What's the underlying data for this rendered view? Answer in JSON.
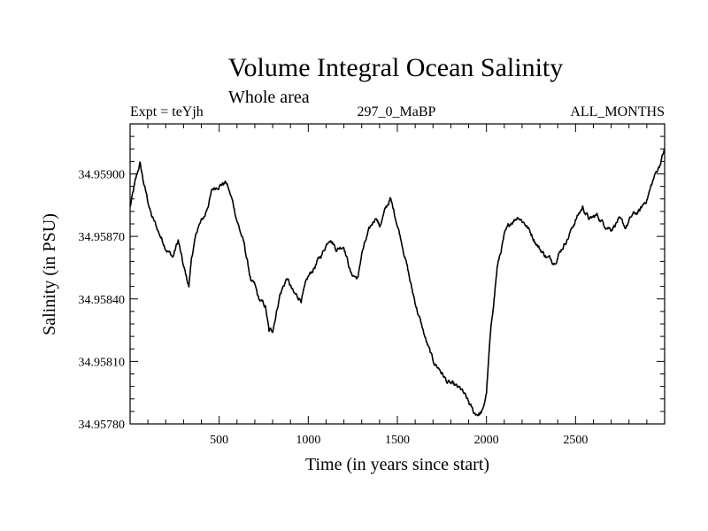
{
  "chart_data": {
    "type": "line",
    "title": "Volume Integral Ocean Salinity",
    "subtitle": "Whole area",
    "left_label": "Expt = teYjh",
    "center_label": "297_0_MaBP",
    "right_label": "ALL_MONTHS",
    "xlabel": "Time (in years since start)",
    "ylabel": "Salinity (in PSU)",
    "xlim": [
      0,
      3000
    ],
    "ylim": [
      34.9578,
      34.95924
    ],
    "x_ticks": [
      500,
      1000,
      1500,
      2000,
      2500
    ],
    "y_ticks": [
      34.9578,
      34.9581,
      34.9584,
      34.9587,
      34.959
    ],
    "y_tick_labels": [
      "34.95780",
      "34.95810",
      "34.95840",
      "34.95870",
      "34.95900"
    ],
    "grid": false,
    "color": "#000000",
    "series": [
      {
        "name": "salinity",
        "x": [
          0,
          30,
          55,
          80,
          120,
          160,
          200,
          240,
          270,
          300,
          330,
          345,
          380,
          420,
          460,
          500,
          540,
          570,
          600,
          640,
          680,
          700,
          720,
          760,
          780,
          800,
          840,
          880,
          920,
          960,
          1000,
          1040,
          1080,
          1120,
          1160,
          1200,
          1240,
          1280,
          1300,
          1340,
          1380,
          1400,
          1430,
          1460,
          1500,
          1540,
          1580,
          1620,
          1660,
          1700,
          1740,
          1780,
          1820,
          1860,
          1900,
          1930,
          1960,
          1980,
          2000,
          2020,
          2040,
          2060,
          2100,
          2140,
          2180,
          2220,
          2260,
          2300,
          2340,
          2380,
          2420,
          2460,
          2500,
          2540,
          2580,
          2620,
          2660,
          2700,
          2740,
          2780,
          2820,
          2860,
          2900,
          2940,
          2970,
          3000
        ],
        "values": [
          34.95884,
          34.95896,
          34.95905,
          34.95894,
          34.9588,
          34.95872,
          34.95865,
          34.9586,
          34.95868,
          34.95855,
          34.95846,
          34.9586,
          34.95874,
          34.9588,
          34.95892,
          34.95895,
          34.95896,
          34.95888,
          34.95878,
          34.95866,
          34.95848,
          34.95846,
          34.9584,
          34.95836,
          34.95824,
          34.95825,
          34.95842,
          34.9585,
          34.95842,
          34.9584,
          34.9585,
          34.95856,
          34.95862,
          34.9587,
          34.95864,
          34.95866,
          34.95852,
          34.9585,
          34.95862,
          34.95872,
          34.9588,
          34.95875,
          34.95882,
          34.95888,
          34.95876,
          34.95862,
          34.95845,
          34.95832,
          34.9582,
          34.9581,
          34.95806,
          34.958,
          34.95798,
          34.95796,
          34.9579,
          34.95785,
          34.95785,
          34.95786,
          34.95795,
          34.9582,
          34.95838,
          34.95855,
          34.9587,
          34.95877,
          34.9588,
          34.95876,
          34.9587,
          34.95864,
          34.9586,
          34.95858,
          34.95864,
          34.9587,
          34.95878,
          34.95884,
          34.95878,
          34.9588,
          34.95876,
          34.95874,
          34.95878,
          34.95874,
          34.9588,
          34.95882,
          34.95888,
          34.95898,
          34.95904,
          34.95912
        ]
      }
    ]
  }
}
